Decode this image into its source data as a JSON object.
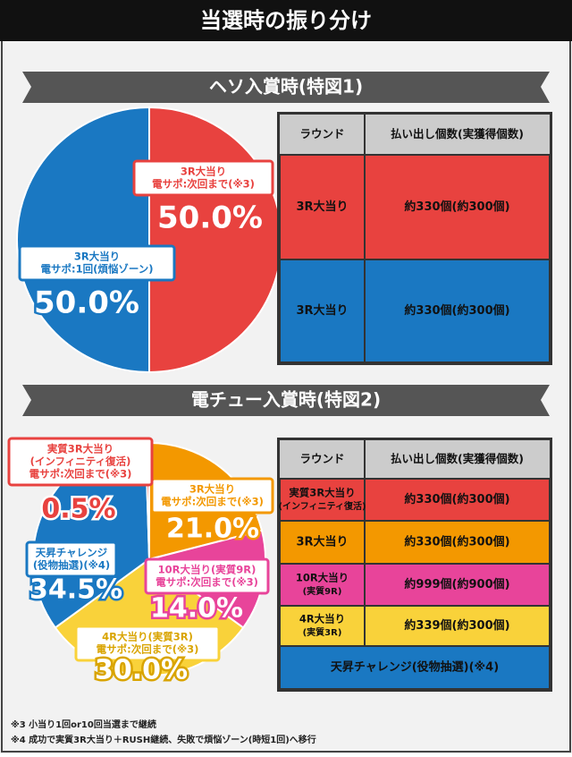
{
  "header": {
    "title": "当選時の振り分け"
  },
  "sections": [
    "ヘソ入賞時(特図1)",
    "電チュー入賞時(特図2)"
  ],
  "chart_data": [
    {
      "type": "pie",
      "categories": [
        [
          "3R大当り",
          "電サポ:次回まで(※3)"
        ],
        [
          "3R大当り",
          "電サポ:1回(煩悩ゾーン)"
        ]
      ],
      "values": [
        50,
        50
      ],
      "value_labels": [
        "50.0%",
        "50.0%"
      ],
      "colors": [
        "#e8423f",
        "#1a78c2"
      ]
    },
    {
      "type": "pie",
      "categories": [
        [
          "3R大当り",
          "電サポ:次回まで(※3)"
        ],
        [
          "10R大当り(実質9R)",
          "電サポ:次回まで(※3)"
        ],
        [
          "4R大当り(実質3R)",
          "電サポ:次回まで(※3)"
        ],
        [
          "天昇チャレンジ",
          "(役物抽選)(※4)"
        ],
        [
          "実質3R大当り",
          "(インフィニティ復活)",
          "電サポ:次回まで(※3)"
        ]
      ],
      "values": [
        21,
        14,
        30,
        34.5,
        0.5
      ],
      "value_labels": [
        "21.0%",
        "14.0%",
        "30.0%",
        "34.5%",
        "0.5%"
      ],
      "colors": [
        "#f39800",
        "#e8449a",
        "#f9d23a",
        "#1a78c2",
        "#e8423f"
      ]
    }
  ],
  "tables": [
    {
      "header": [
        "ラウンド",
        "払い出し個数(実獲得個数)"
      ],
      "rows": [
        {
          "color": "#e8423f",
          "cells": [
            [
              "3R大当り"
            ],
            [
              "約330個(約300個)"
            ]
          ]
        },
        {
          "color": "#1a78c2",
          "cells": [
            [
              "3R大当り"
            ],
            [
              "約330個(約300個)"
            ]
          ]
        }
      ]
    },
    {
      "header": [
        "ラウンド",
        "払い出し個数(実獲得個数)"
      ],
      "rows": [
        {
          "color": "#e8423f",
          "cells": [
            [
              "実質3R大当り",
              "(インフィニティ復活)"
            ],
            [
              "約330個(約300個)"
            ]
          ]
        },
        {
          "color": "#f39800",
          "cells": [
            [
              "3R大当り"
            ],
            [
              "約330個(約300個)"
            ]
          ]
        },
        {
          "color": "#e8449a",
          "cells": [
            [
              "10R大当り",
              "(実質9R)"
            ],
            [
              "約999個(約900個)"
            ]
          ]
        },
        {
          "color": "#f9d23a",
          "cells": [
            [
              "4R大当り",
              "(実質3R)"
            ],
            [
              "約339個(約300個)"
            ]
          ]
        },
        {
          "color": "#1a78c2",
          "cells": [
            [
              "天昇チャレンジ(役物抽選)(※4)"
            ]
          ]
        }
      ]
    }
  ],
  "notes": [
    "※3 小当り1回or10回当選まで継続",
    "※4 成功で実質3R大当り＋RUSH継続、失敗で煩悩ゾーン(時短1回)へ移行"
  ]
}
